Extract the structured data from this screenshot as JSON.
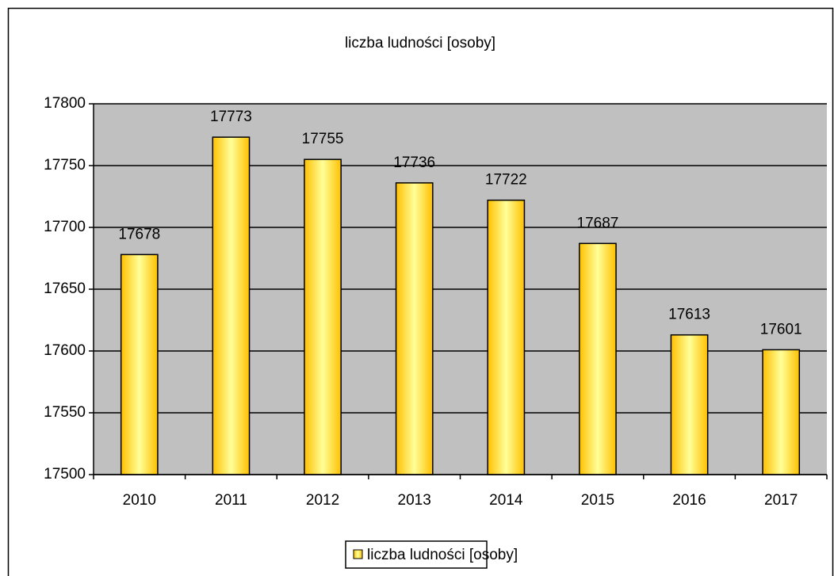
{
  "chart_data": {
    "type": "bar",
    "title": "liczba ludności [osoby]",
    "categories": [
      "2010",
      "2011",
      "2012",
      "2013",
      "2014",
      "2015",
      "2016",
      "2017"
    ],
    "series": [
      {
        "name": "liczba ludności [osoby]",
        "color": "#ffc000",
        "values": [
          17678,
          17773,
          17755,
          17736,
          17722,
          17687,
          17613,
          17601
        ]
      }
    ],
    "ylim": [
      17500,
      17800
    ],
    "yticks": [
      17500,
      17550,
      17600,
      17650,
      17700,
      17750,
      17800
    ],
    "grid": true,
    "legend": "bottom"
  }
}
